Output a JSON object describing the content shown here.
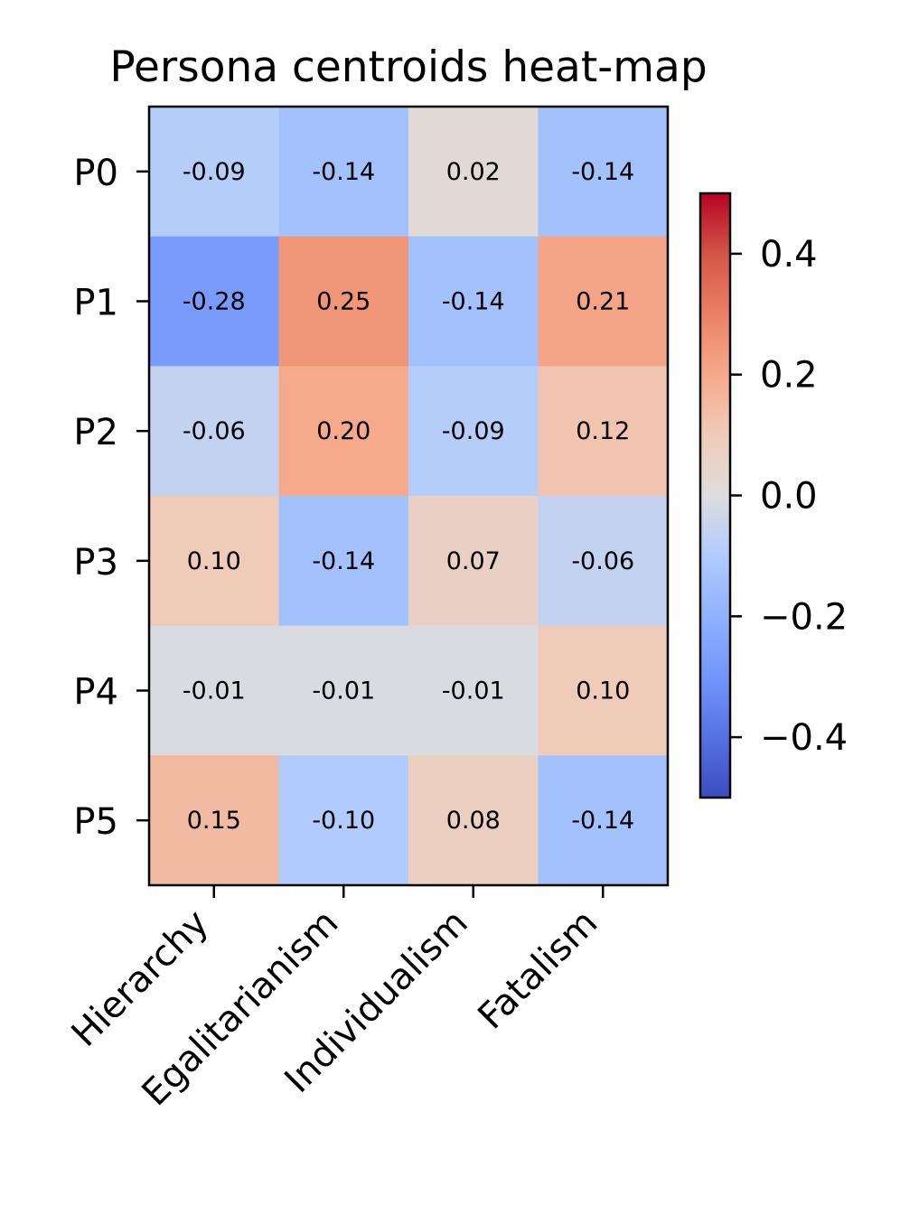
{
  "chart_data": {
    "type": "heatmap",
    "title": "Persona centroids heat-map",
    "xlabel": "",
    "ylabel": "",
    "x_categories": [
      "Hierarchy",
      "Egalitarianism",
      "Individualism",
      "Fatalism"
    ],
    "y_categories": [
      "P0",
      "P1",
      "P2",
      "P3",
      "P4",
      "P5"
    ],
    "values": [
      [
        -0.09,
        -0.14,
        0.02,
        -0.14
      ],
      [
        -0.28,
        0.25,
        -0.14,
        0.21
      ],
      [
        -0.06,
        0.2,
        -0.09,
        0.12
      ],
      [
        0.1,
        -0.14,
        0.07,
        -0.06
      ],
      [
        -0.01,
        -0.01,
        -0.01,
        0.1
      ],
      [
        0.15,
        -0.1,
        0.08,
        -0.14
      ]
    ],
    "cell_labels": [
      [
        "-0.09",
        "-0.14",
        "0.02",
        "-0.14"
      ],
      [
        "-0.28",
        "0.25",
        "-0.14",
        "0.21"
      ],
      [
        "-0.06",
        "0.20",
        "-0.09",
        "0.12"
      ],
      [
        "0.10",
        "-0.14",
        "0.07",
        "-0.06"
      ],
      [
        "-0.01",
        "-0.01",
        "-0.01",
        "0.10"
      ],
      [
        "0.15",
        "-0.10",
        "0.08",
        "-0.14"
      ]
    ],
    "colormap": "coolwarm",
    "vmin": -0.5,
    "vmax": 0.5,
    "colorbar": {
      "ticks": [
        0.4,
        0.2,
        0.0,
        -0.2,
        -0.4
      ],
      "tick_labels": [
        "0.4",
        "0.2",
        "0.0",
        "−0.2",
        "−0.4"
      ]
    },
    "grid": false
  }
}
